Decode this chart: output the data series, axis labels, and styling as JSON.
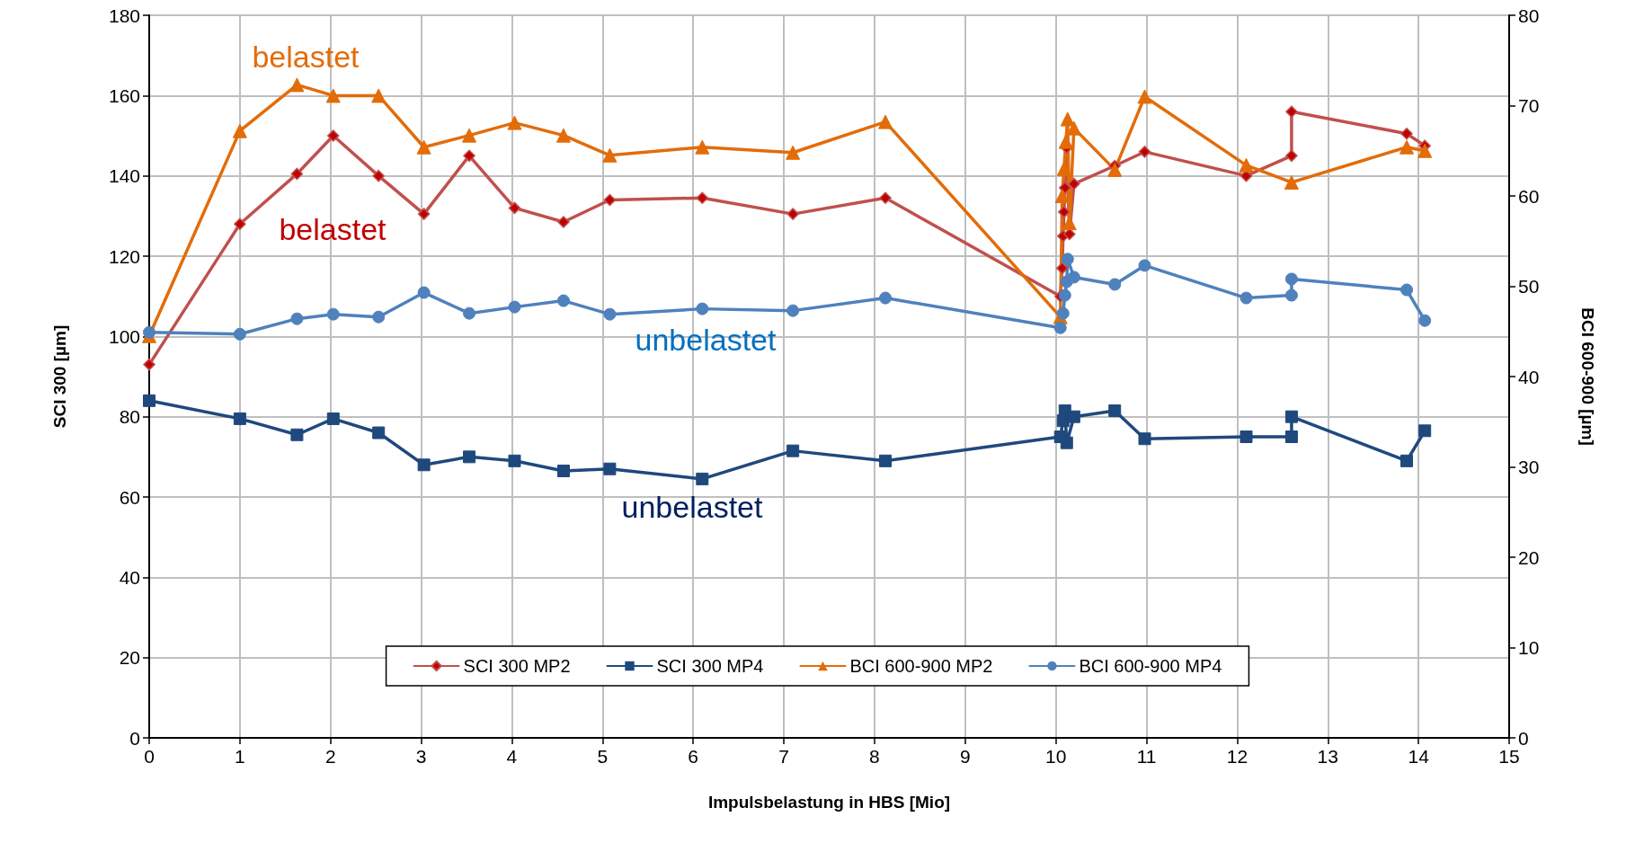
{
  "chart_data": {
    "type": "line",
    "xlabel": "Impulsbelastung in HBS [Mio]",
    "ylabel": "SCI 300 [µm]",
    "y2label": "BCI 600-900 [µm]",
    "xlim": [
      0,
      15
    ],
    "xticks": [
      0,
      1,
      2,
      3,
      4,
      5,
      6,
      7,
      8,
      9,
      10,
      11,
      12,
      13,
      14,
      15
    ],
    "ylim": [
      0,
      180
    ],
    "yticks": [
      0,
      20,
      40,
      60,
      80,
      100,
      120,
      140,
      160,
      180
    ],
    "y2lim": [
      0,
      80
    ],
    "y2ticks": [
      0,
      10,
      20,
      30,
      40,
      50,
      60,
      70,
      80
    ],
    "grid": true,
    "legend": "bottom",
    "line_style": "solid",
    "series": [
      {
        "name": "SCI 300 MP2",
        "color": "#c0504d",
        "marker": "diamond",
        "axis": "y",
        "x": [
          0,
          1,
          1.63,
          2.03,
          2.53,
          3.03,
          3.53,
          4.03,
          4.57,
          5.08,
          6.1,
          7.1,
          8.12,
          10.05,
          10.07,
          10.08,
          10.09,
          10.1,
          10.12,
          10.15,
          10.2,
          10.65,
          10.98,
          12.1,
          12.6,
          12.6,
          13.87,
          14.07
        ],
        "values": [
          93,
          128,
          140.5,
          150,
          140,
          130.5,
          145,
          132,
          128.5,
          134,
          134.5,
          130.5,
          134.5,
          110,
          117,
          125,
          131,
          137,
          147,
          125.5,
          138,
          142.5,
          146,
          140,
          145,
          156,
          150.5,
          147.5
        ]
      },
      {
        "name": "SCI 300 MP4",
        "color": "#1f497d",
        "marker": "square",
        "axis": "y",
        "x": [
          0,
          1,
          1.63,
          2.03,
          2.53,
          3.03,
          3.53,
          4.03,
          4.57,
          5.08,
          6.1,
          7.1,
          8.12,
          10.05,
          10.08,
          10.1,
          10.12,
          10.2,
          10.65,
          10.98,
          12.1,
          12.6,
          12.6,
          13.87,
          14.07
        ],
        "values": [
          84,
          79.5,
          75.5,
          79.5,
          76,
          68,
          70,
          69,
          66.5,
          67,
          64.5,
          71.5,
          69,
          75,
          79,
          81.5,
          73.5,
          80,
          81.5,
          74.5,
          75,
          75,
          80,
          69,
          76.5
        ]
      },
      {
        "name": "BCI 600-900 MP2",
        "color": "#e36c09",
        "marker": "triangle",
        "axis": "y2",
        "x": [
          0,
          1,
          1.63,
          2.03,
          2.53,
          3.03,
          3.53,
          4.03,
          4.57,
          5.08,
          6.1,
          7.1,
          8.12,
          10.05,
          10.07,
          10.09,
          10.11,
          10.13,
          10.15,
          10.2,
          10.65,
          10.98,
          12.1,
          12.6,
          13.87,
          14.07
        ],
        "values": [
          44.5,
          67.2,
          72.3,
          71.1,
          71.1,
          65.4,
          66.7,
          68.1,
          66.7,
          64.5,
          65.4,
          64.8,
          68.2,
          46.6,
          60,
          63,
          66,
          68.5,
          57,
          67.5,
          62.9,
          71,
          63.4,
          61.5,
          65.4,
          65
        ]
      },
      {
        "name": "BCI 600-900 MP4",
        "color": "#4f81bd",
        "marker": "circle",
        "axis": "y2",
        "x": [
          0,
          1,
          1.63,
          2.03,
          2.53,
          3.03,
          3.53,
          4.03,
          4.57,
          5.08,
          6.1,
          7.1,
          8.12,
          10.05,
          10.08,
          10.1,
          10.12,
          10.13,
          10.2,
          10.65,
          10.98,
          12.1,
          12.6,
          12.6,
          13.87,
          14.07
        ],
        "values": [
          44.9,
          44.7,
          46.4,
          46.9,
          46.6,
          49.3,
          47,
          47.7,
          48.4,
          46.9,
          47.5,
          47.3,
          48.7,
          45.4,
          47,
          49,
          50.5,
          53,
          51,
          50.2,
          52.3,
          48.7,
          49,
          50.8,
          49.6,
          46.2
        ]
      }
    ],
    "annotations": [
      "belastet",
      "belastet",
      "unbelastet",
      "unbelastet"
    ]
  }
}
